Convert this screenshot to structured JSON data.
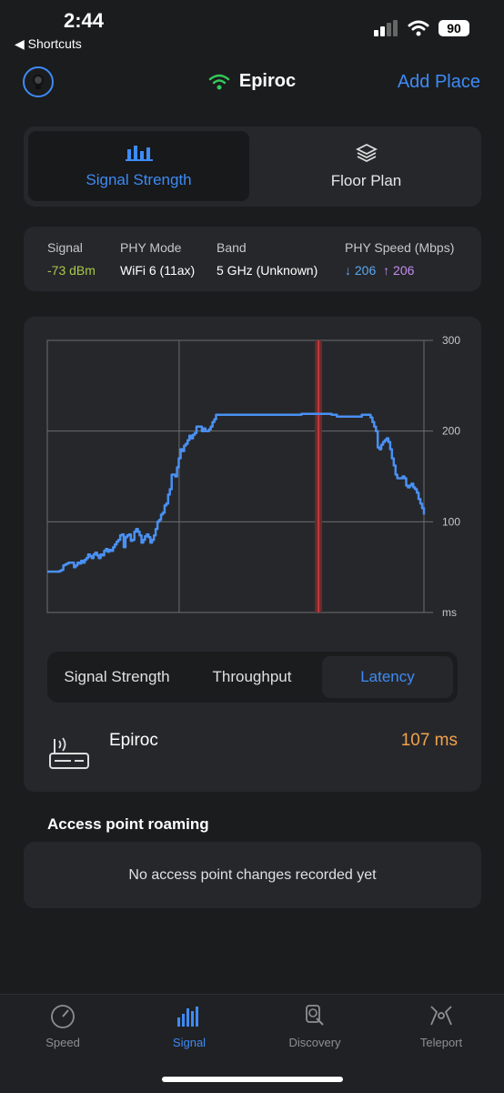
{
  "status": {
    "time": "2:44",
    "back_label": "Shortcuts",
    "battery": "90"
  },
  "header": {
    "title": "Epiroc",
    "add_place": "Add Place",
    "wifi_color": "#34c759"
  },
  "top_tabs": [
    {
      "label": "Signal Strength",
      "icon": "signal-bars-icon",
      "active": true
    },
    {
      "label": "Floor Plan",
      "icon": "layers-icon",
      "active": false
    }
  ],
  "info": {
    "signal": {
      "label": "Signal",
      "value": "-73 dBm",
      "color": "#a8c94a"
    },
    "phy_mode": {
      "label": "PHY Mode",
      "value": "WiFi 6 (11ax)"
    },
    "band": {
      "label": "Band",
      "value": "5 GHz (Unknown)"
    },
    "phy_speed": {
      "label": "PHY Speed (Mbps)",
      "down": "↓ 206",
      "up": "↑ 206",
      "down_color": "#5aa8f0",
      "up_color": "#c58df0"
    }
  },
  "chart_data": {
    "type": "line",
    "series": [
      {
        "values": [
          45,
          45,
          45,
          45,
          45,
          45,
          45,
          46,
          47,
          52,
          53,
          54,
          55,
          55,
          55,
          50,
          52,
          55,
          54,
          57,
          55,
          58,
          60,
          64,
          62,
          60,
          64,
          66,
          63,
          60,
          64,
          63,
          68,
          70,
          67,
          69,
          68,
          72,
          75,
          78,
          80,
          85,
          86,
          72,
          83,
          85,
          86,
          79,
          80,
          89,
          92,
          89,
          85,
          77,
          80,
          84,
          86,
          83,
          77,
          80,
          85,
          92,
          100,
          102,
          108,
          110,
          118,
          120,
          130,
          136,
          152,
          152,
          150,
          160,
          170,
          180,
          178,
          184,
          186,
          190,
          195,
          192,
          196,
          198,
          205,
          205,
          205,
          200,
          203,
          200,
          200,
          202,
          205,
          210,
          213,
          218,
          218,
          218,
          218,
          218,
          218,
          218,
          218,
          218,
          218,
          218,
          218,
          218,
          218,
          218,
          218,
          218,
          218,
          218,
          218,
          218,
          218,
          218,
          218,
          218,
          218,
          218,
          218,
          218,
          218,
          218,
          218,
          218,
          218,
          218,
          218,
          218,
          218,
          218,
          218,
          218,
          218,
          218,
          218,
          218,
          218,
          218,
          218,
          219,
          219,
          219,
          219,
          219,
          219,
          219,
          219,
          219,
          219,
          219,
          219,
          219,
          219,
          219,
          219,
          219,
          218,
          218,
          218,
          216,
          216,
          216,
          216,
          216,
          216,
          216,
          216,
          216,
          216,
          216,
          216,
          216,
          216,
          218,
          218,
          218,
          218,
          218,
          215,
          210,
          205,
          200,
          182,
          180,
          185,
          188,
          190,
          192,
          188,
          180,
          170,
          162,
          152,
          148,
          148,
          148,
          150,
          148,
          140,
          138,
          140,
          142,
          138,
          136,
          132,
          125,
          120,
          115,
          108
        ]
      }
    ],
    "ylim": [
      0,
      300
    ],
    "y_ticks": [
      "300",
      "200",
      "100",
      "ms"
    ],
    "grid": true,
    "marker_fraction": 0.72
  },
  "metric_tabs": [
    {
      "label": "Signal Strength",
      "active": false
    },
    {
      "label": "Throughput",
      "active": false
    },
    {
      "label": "Latency",
      "active": true
    }
  ],
  "network": {
    "name": "Epiroc",
    "value": "107 ms"
  },
  "roaming": {
    "heading": "Access point roaming",
    "empty_text": "No access point changes recorded yet"
  },
  "tabbar": [
    {
      "label": "Speed",
      "icon": "speedometer-icon",
      "active": false
    },
    {
      "label": "Signal",
      "icon": "signal-bars-icon",
      "active": true
    },
    {
      "label": "Discovery",
      "icon": "magnifier-device-icon",
      "active": false
    },
    {
      "label": "Teleport",
      "icon": "teleport-icon",
      "active": false
    }
  ]
}
